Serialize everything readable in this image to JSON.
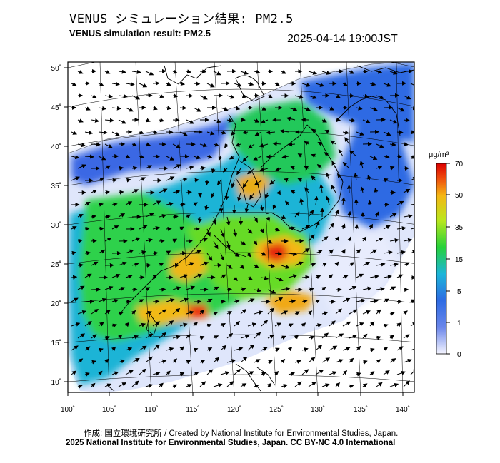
{
  "header": {
    "title_jp": "VENUS シミュレーション結果: PM2.5",
    "title_en": "VENUS simulation result: PM2.5",
    "timestamp": "2025-04-14 19:00JST"
  },
  "map": {
    "lon_labels": [
      "100˚",
      "105˚",
      "110˚",
      "115˚",
      "120˚",
      "125˚",
      "130˚",
      "135˚",
      "140˚"
    ],
    "lat_labels": [
      "50˚",
      "45˚",
      "40˚",
      "35˚",
      "30˚",
      "25˚",
      "20˚",
      "15˚",
      "10˚"
    ],
    "lon_range": [
      100,
      141
    ],
    "lat_range": [
      9,
      50
    ],
    "variable": "PM2.5 concentration with wind vectors",
    "colors": {
      "land_outline": "#000000",
      "graticule": "#000000",
      "background": "#ffffff"
    }
  },
  "colorbar": {
    "unit": "μg/m³",
    "ticks": [
      "70",
      "50",
      "35",
      "15",
      "5",
      "1",
      "0"
    ],
    "stops": [
      "#f5f5ff",
      "#3b63e0",
      "#1fb4d6",
      "#26d13a",
      "#b7e61e",
      "#f5b715",
      "#ee4d0d",
      "#dc0000"
    ]
  },
  "footer": {
    "credit": "作成: 国立環境研究所 / Created by National Institute for Environmental Studies, Japan.",
    "copyright": "2025 National Institute for Environmental Studies, Japan. CC BY-NC 4.0 International"
  }
}
